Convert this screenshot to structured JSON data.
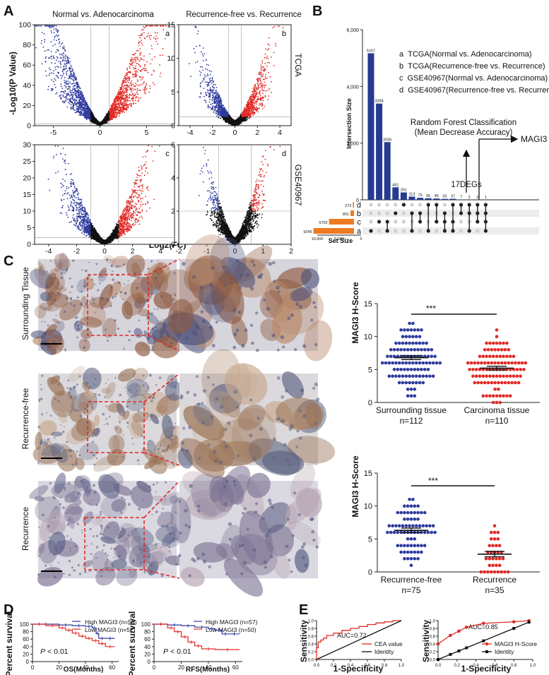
{
  "panels": {
    "A": "A",
    "B": "B",
    "C": "C",
    "D": "D",
    "E": "E"
  },
  "panelA": {
    "col_titles": [
      "Normal vs. Adenocarcinoma",
      "Recurrence-free vs. Recurrence"
    ],
    "row_labels": [
      "TCGA",
      "GSE40967"
    ],
    "sub_letters": [
      "a",
      "b",
      "c",
      "d"
    ],
    "ylabel": "-Log10(P Value)",
    "xlabel": "Log2(FC)",
    "plots": [
      {
        "id": "a",
        "xticks": [
          "-5",
          "0",
          "5"
        ],
        "yticks": [
          "0",
          "20",
          "40",
          "60",
          "80",
          "100"
        ]
      },
      {
        "id": "b",
        "xticks": [
          "-4",
          "-2",
          "0",
          "2",
          "4"
        ],
        "yticks": [
          "0",
          "5",
          "10",
          "15"
        ]
      },
      {
        "id": "c",
        "xticks": [
          "-4",
          "-2",
          "0",
          "2",
          "4"
        ],
        "yticks": [
          "0",
          "5",
          "10",
          "15",
          "20",
          "25",
          "30"
        ]
      },
      {
        "id": "d",
        "xticks": [
          "-2",
          "-1",
          "0",
          "1",
          "2"
        ],
        "yticks": [
          "0",
          "2",
          "4",
          "6"
        ]
      }
    ]
  },
  "panelB": {
    "ylabel": "Intersection Size",
    "yticks": [
      "0",
      "2,000",
      "4,000",
      "6,000"
    ],
    "bar_values": [
      "5167",
      "3394",
      "2035",
      "441",
      "261",
      "113",
      "70",
      "56",
      "46",
      "33",
      "37",
      "7",
      "2",
      "2",
      "1"
    ],
    "legend": [
      {
        "k": "a",
        "text": "TCGA(Normal vs. Adenocarcinoma)"
      },
      {
        "k": "b",
        "text": "TCGA(Recurrence-free vs. Recurrence)"
      },
      {
        "k": "c",
        "text": "GSE40967(Normal vs. Adenocarcinoma)"
      },
      {
        "k": "d",
        "text": "GSE40967(Recurrence-free vs. Recurrence)"
      }
    ],
    "rf_text_1": "Random Forest Classification",
    "rf_text_2": "(Mean Decrease Accuracy)",
    "magi3": "MAGI3",
    "degs": "17DEGs",
    "sets": [
      {
        "k": "d",
        "size": "273"
      },
      {
        "k": "b",
        "size": "801"
      },
      {
        "k": "c",
        "size": "5702"
      },
      {
        "k": "a",
        "size": "9245"
      }
    ],
    "set_size_label": "Set Size",
    "set_size_ticks": [
      "10,000",
      "5,000",
      "0"
    ]
  },
  "panelC": {
    "row_labels": [
      "Surrounding Tissue",
      "Recurrence-free",
      "Recurrence"
    ],
    "top": {
      "ylabel": "MAGI3 H-Score",
      "yticks": [
        "0",
        "5",
        "10",
        "15"
      ],
      "sig": "***",
      "groups": [
        {
          "name": "Surrounding tissue",
          "n": "n=112"
        },
        {
          "name": "Carcinoma tissue",
          "n": "n=110"
        }
      ]
    },
    "bottom": {
      "ylabel": "MAGI3 H-Score",
      "yticks": [
        "0",
        "5",
        "10",
        "15"
      ],
      "sig": "***",
      "groups": [
        {
          "name": "Recurrence-free",
          "n": "n=75"
        },
        {
          "name": "Recurrence",
          "n": "n=35"
        }
      ]
    }
  },
  "panelD": {
    "ylabel": "Percent survival",
    "yticks": [
      "0",
      "20",
      "40",
      "60",
      "80",
      "100"
    ],
    "xticks": [
      "0",
      "20",
      "40",
      "60"
    ],
    "pval": "< 0.01",
    "p_letter": "P",
    "os": {
      "xlabel": "OS(Months)",
      "high": "High MAGI3 (n=58)",
      "low": "Low MAGI3 (n=52)"
    },
    "rfs": {
      "xlabel": "RFS(Months)",
      "high": "High MAGI3 (n=57)",
      "low": "Low MAGI3 (n=50)"
    }
  },
  "panelE": {
    "ylabel": "Sensitivity",
    "xlabel": "1-Specificity",
    "ticks": [
      "0.0",
      "0.2",
      "0.4",
      "0.6",
      "0.8",
      "1.0"
    ],
    "left": {
      "auc": "AUC=0.72",
      "legend1": "CEA value",
      "legend2": "Identity"
    },
    "right": {
      "auc": "AUC=0.85",
      "legend1": "MAGI3 H-Score",
      "legend2": "Identity"
    }
  },
  "colors": {
    "blue": "#2e3a9c",
    "red": "#e12a26",
    "black": "#111111",
    "orange": "#ee7b22",
    "navy": "#263a8f"
  },
  "chart_data": [
    {
      "type": "scatter",
      "name": "volcano-a",
      "title": "Normal vs. Adenocarcinoma",
      "xlabel": "Log2(FC)",
      "ylabel": "-Log10(P Value)",
      "xlim": [
        -7,
        8
      ],
      "ylim": [
        0,
        100
      ],
      "thresholds": {
        "logfc": [
          -1,
          1
        ],
        "p": 2
      }
    },
    {
      "type": "scatter",
      "name": "volcano-b",
      "title": "Recurrence-free vs. Recurrence",
      "xlabel": "Log2(FC)",
      "ylabel": "-Log10(P Value)",
      "xlim": [
        -5,
        5
      ],
      "ylim": [
        0,
        15
      ],
      "thresholds": {
        "logfc": [
          -0.58,
          0.58
        ],
        "p": 1.3
      }
    },
    {
      "type": "scatter",
      "name": "volcano-c",
      "xlabel": "Log2(FC)",
      "ylabel": "-Log10(P Value)",
      "xlim": [
        -5,
        5
      ],
      "ylim": [
        0,
        30
      ],
      "thresholds": {
        "logfc": [
          -1,
          1
        ],
        "p": 2
      }
    },
    {
      "type": "scatter",
      "name": "volcano-d",
      "xlabel": "Log2(FC)",
      "ylabel": "-Log10(P Value)",
      "xlim": [
        -2,
        2
      ],
      "ylim": [
        0,
        6
      ],
      "thresholds": {
        "logfc": [
          -0.58,
          0.58
        ],
        "p": 2
      }
    },
    {
      "type": "bar",
      "name": "upset",
      "ylabel": "Intersection Size",
      "ylim": [
        0,
        6000
      ],
      "values": [
        5167,
        3394,
        2035,
        441,
        261,
        113,
        70,
        56,
        46,
        33,
        37,
        7,
        2,
        2,
        1
      ],
      "membership": [
        [
          "a"
        ],
        [
          "c"
        ],
        [
          "a",
          "c"
        ],
        [
          "b"
        ],
        [
          "d"
        ],
        [
          "a",
          "b"
        ],
        [
          "b",
          "c"
        ],
        [
          "a",
          "d"
        ],
        [
          "c",
          "d"
        ],
        [
          "a",
          "b",
          "c"
        ],
        [
          "a",
          "c",
          "d"
        ],
        [
          "b",
          "d"
        ],
        [
          "a",
          "b",
          "d"
        ],
        [
          "b",
          "c",
          "d"
        ],
        [
          "a",
          "b",
          "c",
          "d"
        ]
      ],
      "set_sizes": {
        "a": 9245,
        "b": 801,
        "c": 5702,
        "d": 273
      }
    },
    {
      "type": "scatter",
      "name": "hscore-top",
      "ylabel": "MAGI3 H-Score",
      "ylim": [
        0,
        15
      ],
      "groups": [
        {
          "name": "Surrounding tissue",
          "n": 112,
          "mean": 6.8,
          "sem": 0.3
        },
        {
          "name": "Carcinoma tissue",
          "n": 110,
          "mean": 5.2,
          "sem": 0.3
        }
      ],
      "significance": "***"
    },
    {
      "type": "scatter",
      "name": "hscore-bottom",
      "ylabel": "MAGI3 H-Score",
      "ylim": [
        0,
        15
      ],
      "groups": [
        {
          "name": "Recurrence-free",
          "n": 75,
          "mean": 6.3,
          "sem": 0.35
        },
        {
          "name": "Recurrence",
          "n": 35,
          "mean": 2.7,
          "sem": 0.4
        }
      ],
      "significance": "***"
    },
    {
      "type": "line",
      "name": "km-os",
      "xlabel": "OS(Months)",
      "ylabel": "Percent survival",
      "xlim": [
        0,
        65
      ],
      "ylim": [
        0,
        100
      ],
      "series": [
        {
          "name": "High MAGI3 (n=58)",
          "x": [
            0,
            20,
            30,
            40,
            45,
            48,
            50,
            55,
            62
          ],
          "y": [
            100,
            98,
            96,
            94,
            90,
            75,
            62,
            62,
            62
          ]
        },
        {
          "name": "Low MAGI3 (n=52)",
          "x": [
            0,
            10,
            20,
            25,
            30,
            35,
            40,
            45,
            50,
            55,
            62
          ],
          "y": [
            100,
            96,
            90,
            84,
            76,
            68,
            62,
            56,
            48,
            40,
            40
          ]
        }
      ]
    },
    {
      "type": "line",
      "name": "km-rfs",
      "xlabel": "RFS(Months)",
      "ylabel": "Percent survival",
      "xlim": [
        0,
        65
      ],
      "ylim": [
        0,
        100
      ],
      "series": [
        {
          "name": "High MAGI3 (n=57)",
          "x": [
            0,
            10,
            20,
            30,
            40,
            45,
            50,
            55,
            63
          ],
          "y": [
            100,
            98,
            96,
            92,
            88,
            84,
            74,
            74,
            74
          ]
        },
        {
          "name": "Low MAGI3 (n=50)",
          "x": [
            0,
            10,
            15,
            20,
            25,
            30,
            35,
            45,
            63
          ],
          "y": [
            100,
            90,
            80,
            66,
            52,
            42,
            34,
            32,
            32
          ]
        }
      ]
    },
    {
      "type": "line",
      "name": "roc-cea",
      "xlabel": "1-Specificity",
      "ylabel": "Sensitivity",
      "auc": 0.72,
      "series": [
        {
          "name": "CEA value",
          "x": [
            0,
            0.02,
            0.05,
            0.08,
            0.12,
            0.2,
            0.3,
            0.4,
            0.5,
            0.6,
            0.7,
            0.8,
            0.9,
            1.0
          ],
          "y": [
            0,
            0.3,
            0.45,
            0.5,
            0.55,
            0.62,
            0.68,
            0.75,
            0.8,
            0.85,
            0.9,
            0.94,
            0.97,
            1.0
          ]
        },
        {
          "name": "Identity",
          "x": [
            0,
            1
          ],
          "y": [
            0,
            1
          ]
        }
      ]
    },
    {
      "type": "line",
      "name": "roc-magi3",
      "xlabel": "1-Specificity",
      "ylabel": "Sensitivity",
      "auc": 0.85,
      "series": [
        {
          "name": "MAGI3 H-Score",
          "x": [
            0,
            0.13,
            0.22,
            0.3,
            0.48,
            0.8,
            0.96
          ],
          "y": [
            0.4,
            0.62,
            0.73,
            0.83,
            0.93,
            0.97,
            1.0
          ]
        },
        {
          "name": "Identity",
          "x": [
            0,
            0.13,
            0.22,
            0.3,
            0.48,
            0.8,
            0.96
          ],
          "y": [
            0,
            0.13,
            0.22,
            0.3,
            0.48,
            0.8,
            0.96
          ]
        }
      ]
    }
  ]
}
